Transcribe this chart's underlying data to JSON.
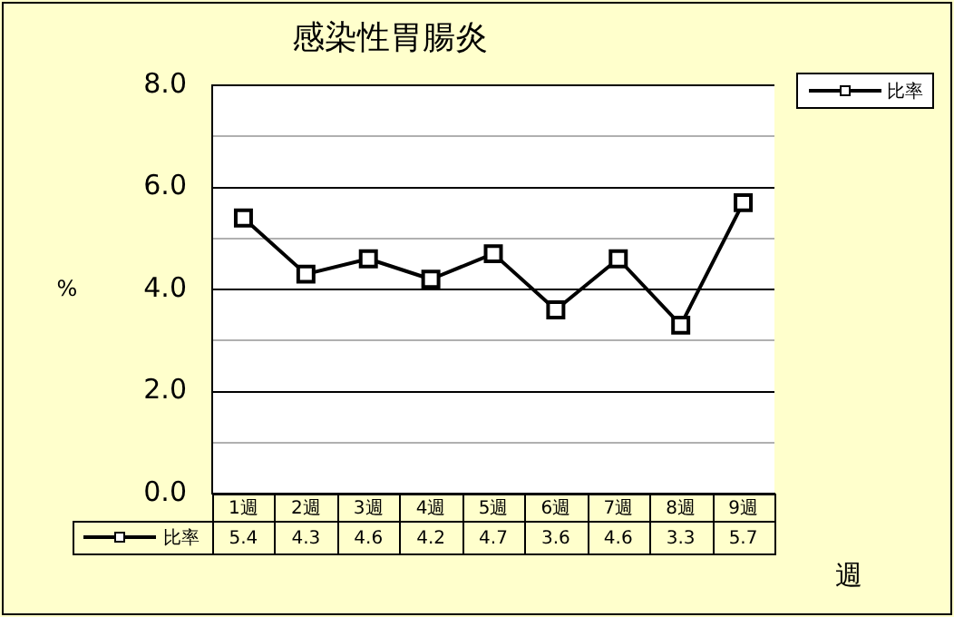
{
  "chart_data": {
    "type": "line",
    "title": "感染性胃腸炎",
    "xlabel": "週",
    "ylabel": "%",
    "categories": [
      "1週",
      "2週",
      "3週",
      "4週",
      "5週",
      "6週",
      "7週",
      "8週",
      "9週"
    ],
    "series": [
      {
        "name": "比率",
        "color": "#000000",
        "values": [
          5.4,
          4.3,
          4.6,
          4.2,
          4.7,
          3.6,
          4.6,
          3.3,
          5.7
        ]
      }
    ],
    "ylim": [
      0,
      8
    ],
    "yticks": [
      {
        "value": 0,
        "label": "0.0"
      },
      {
        "value": 1,
        "label": null
      },
      {
        "value": 2,
        "label": "2.0"
      },
      {
        "value": 3,
        "label": null
      },
      {
        "value": 4,
        "label": "4.0"
      },
      {
        "value": 5,
        "label": null
      },
      {
        "value": 6,
        "label": "6.0"
      },
      {
        "value": 7,
        "label": null
      },
      {
        "value": 8,
        "label": "8.0"
      }
    ],
    "grid": "y",
    "legend": "top right",
    "marker": "square",
    "line_style": "solid",
    "data_labels": true
  }
}
